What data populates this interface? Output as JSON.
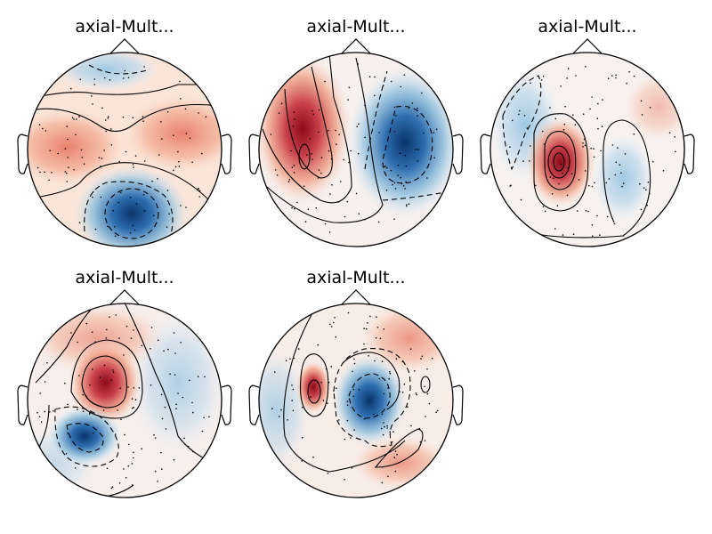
{
  "figure": {
    "panels": [
      {
        "title": "axial-Mult..."
      },
      {
        "title": "axial-Mult..."
      },
      {
        "title": "axial-Mult..."
      },
      {
        "title": "axial-Mult..."
      },
      {
        "title": "axial-Mult..."
      }
    ]
  },
  "colors": {
    "positive": "#b2182b",
    "negative": "#2166ac",
    "neutral": "#f7f7f7",
    "outline": "#000000"
  }
}
